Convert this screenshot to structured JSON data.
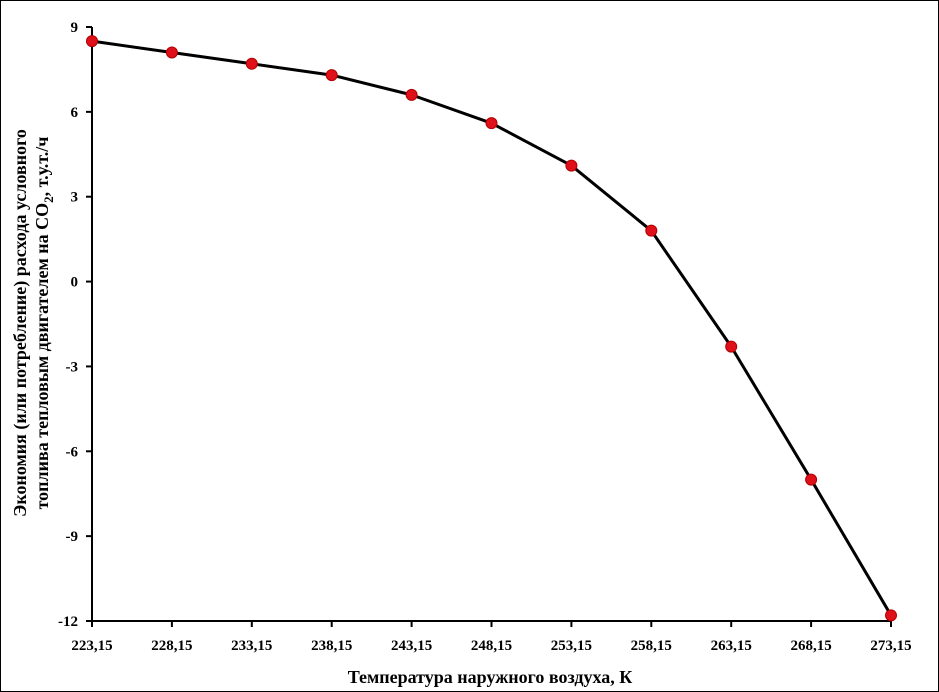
{
  "chart_data": {
    "type": "line",
    "xlabel": "Температура наружного воздуха, К",
    "ylabel_line1": "Экономия (или потребление) расхода условного",
    "ylabel_line2_main": "топлива тепловым двигателем на CO",
    "ylabel_line2_sub": "2",
    "ylabel_line2_tail": ", т.у.т./ч",
    "ylim": [
      -12,
      9
    ],
    "yticks": [
      9,
      6,
      3,
      0,
      -3,
      -6,
      -9,
      -12
    ],
    "x_tick_labels": [
      "223,15",
      "228,15",
      "233,15",
      "238,15",
      "243,15",
      "248,15",
      "253,15",
      "258,15",
      "263,15",
      "268,15",
      "273,15"
    ],
    "series": [
      {
        "x": [
          223.15,
          228.15,
          233.15,
          238.15,
          243.15,
          248.15,
          253.15,
          258.15,
          263.15,
          268.15,
          273.15
        ],
        "values": [
          8.5,
          8.1,
          7.7,
          7.3,
          6.6,
          5.6,
          4.1,
          1.8,
          -2.3,
          -7.0,
          -11.8
        ],
        "line_color": "#000000",
        "marker_color": "#e0101a"
      }
    ],
    "grid": false,
    "legend": "none"
  }
}
